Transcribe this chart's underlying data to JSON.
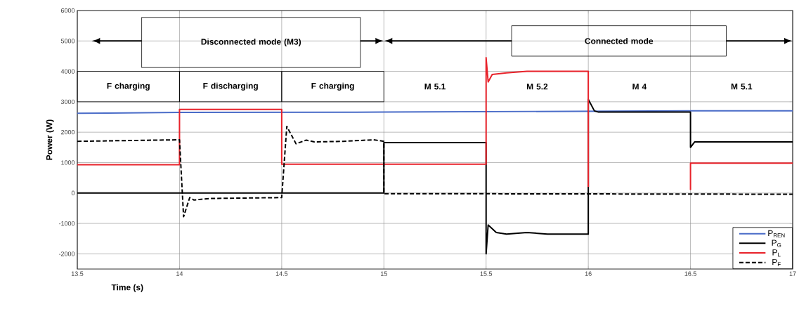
{
  "chart_data": {
    "type": "line",
    "xlabel": "Time (s)",
    "ylabel": "Power (W)",
    "xlim": [
      13.5,
      17
    ],
    "xticks": [
      13.5,
      14,
      14.5,
      15,
      15.5,
      16,
      16.5,
      17
    ],
    "ylim": [
      -2500,
      6000
    ],
    "yticks": [
      -2000,
      -1000,
      0,
      1000,
      2000,
      3000,
      4000,
      5000,
      6000
    ],
    "grid": true,
    "legend": "bottom right",
    "series": [
      {
        "name": "P$_{REN}$",
        "color": "#4a6cc8",
        "line_style": "solid",
        "x": [
          13.5,
          13.65,
          14,
          15,
          15.2,
          16.5,
          17
        ],
        "values": [
          2620,
          2630,
          2650,
          2660,
          2670,
          2700,
          2700
        ]
      },
      {
        "name": "P$_{G}$",
        "color": "#000000",
        "line_style": "solid",
        "x": [
          13.5,
          15,
          15,
          15.5,
          15.5,
          15.51,
          15.55,
          15.6,
          15.7,
          15.8,
          16,
          16,
          16.03,
          16.05,
          16.5,
          16.5,
          16.52,
          17
        ],
        "values": [
          0,
          0,
          1660,
          1660,
          -2000,
          -1050,
          -1300,
          -1350,
          -1300,
          -1350,
          -1350,
          3080,
          2700,
          2660,
          2660,
          1500,
          1680,
          1680
        ]
      },
      {
        "name": "P$_{L}$",
        "color": "#e8222a",
        "line_style": "solid",
        "x": [
          13.5,
          14,
          14,
          14.5,
          14.5,
          15.5,
          15.5,
          15.51,
          15.53,
          15.6,
          15.7,
          16,
          16,
          16.25,
          16.5,
          16.5,
          17
        ],
        "values": [
          930,
          930,
          2750,
          2750,
          950,
          950,
          4450,
          3650,
          3900,
          3950,
          4000,
          4000,
          200,
          null,
          100,
          980,
          980
        ]
      },
      {
        "name": "P$_{F}$",
        "color": "#000000",
        "line_style": "dashed",
        "x": [
          13.5,
          14,
          14.02,
          14.05,
          14.07,
          14.15,
          14.5,
          14.525,
          14.57,
          14.62,
          14.66,
          14.8,
          14.95,
          15,
          15,
          17
        ],
        "values": [
          1700,
          1750,
          -780,
          -150,
          -230,
          -180,
          -150,
          2190,
          1620,
          1740,
          1680,
          1700,
          1750,
          1700,
          -20,
          -40
        ]
      }
    ],
    "annotations": [
      "Disconnected mode (M3)",
      "Connected mode",
      "F charging",
      "F discharging",
      "F charging",
      "M 5.1",
      "M 5.2",
      "M 4",
      "M 5.1"
    ]
  }
}
